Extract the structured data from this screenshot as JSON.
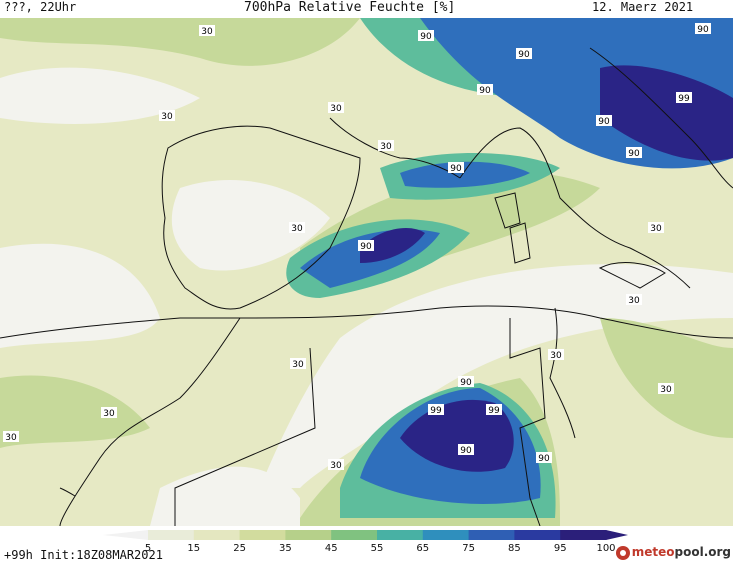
{
  "header": {
    "left": "???, 22Uhr",
    "title": "700hPa Relative Feuchte [%]",
    "date": "12. Maerz 2021"
  },
  "footer": {
    "run": "+99h Init:18Z08MAR2021",
    "brand_prefix": "meteo",
    "brand_mid": "pool",
    "brand_suffix": ".org"
  },
  "legend": {
    "ticks": [
      "5",
      "15",
      "25",
      "35",
      "45",
      "55",
      "65",
      "75",
      "85",
      "95",
      "100"
    ],
    "colors": [
      "#f2f2f2",
      "#e9ecd9",
      "#e4e7c0",
      "#d2dc9e",
      "#b6d08a",
      "#80c280",
      "#48b1a4",
      "#2f8fbd",
      "#2f5fb4",
      "#2a3aa0",
      "#2b1f7a"
    ]
  },
  "map": {
    "contour_labels": [
      "30",
      "30",
      "30",
      "30",
      "30",
      "30",
      "30",
      "30",
      "30",
      "30",
      "30",
      "30",
      "30",
      "90",
      "90",
      "90",
      "90",
      "90",
      "90",
      "90",
      "90",
      "90",
      "90",
      "90",
      "99",
      "99",
      "99"
    ]
  }
}
